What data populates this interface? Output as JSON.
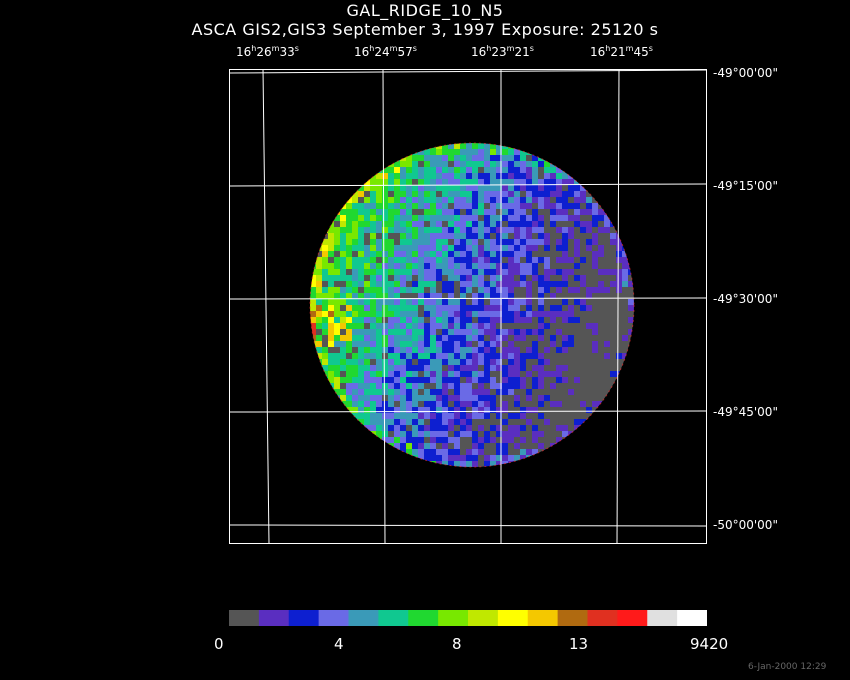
{
  "title": "GAL_RIDGE_10_N5",
  "subtitle": "ASCA GIS2,GIS3 September 3, 1997 Exposure: 25120 s",
  "ra_labels": [
    {
      "h": "16",
      "m": "26",
      "s": "33"
    },
    {
      "h": "16",
      "m": "24",
      "s": "57"
    },
    {
      "h": "16",
      "m": "23",
      "s": "21"
    },
    {
      "h": "16",
      "m": "21",
      "s": "45"
    }
  ],
  "dec_labels": [
    "-49°00'00\"",
    "-49°15'00\"",
    "-49°30'00\"",
    "-49°45'00\"",
    "-50°00'00\""
  ],
  "colorbar": {
    "colors": [
      "#555555",
      "#5a2ec0",
      "#0d1fd0",
      "#6a6ae6",
      "#3a9ab8",
      "#10c890",
      "#20d830",
      "#78e800",
      "#c0e800",
      "#ffff00",
      "#f4c800",
      "#b06a10",
      "#e03020",
      "#ff1a1a",
      "#e0e0e0",
      "#ffffff"
    ],
    "labels": [
      "0",
      "4",
      "8",
      "13",
      "9420"
    ]
  },
  "palette": {
    "background": "#000000",
    "grid": "#ffffff"
  },
  "timestamp": "6-Jan-2000 12:29"
}
